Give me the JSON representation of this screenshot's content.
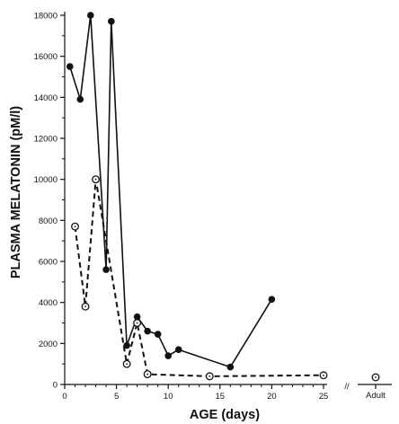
{
  "chart_data": {
    "type": "line",
    "title": "",
    "xlabel": "AGE (days)",
    "ylabel": "PLASMA MELATONIN (pM/l)",
    "xlim": [
      0,
      25
    ],
    "ylim": [
      0,
      18000
    ],
    "x_ticks": [
      0,
      5,
      10,
      15,
      20,
      25
    ],
    "y_ticks": [
      0,
      2000,
      4000,
      6000,
      8000,
      10000,
      12000,
      14000,
      16000,
      18000
    ],
    "grid": false,
    "adult_label": "Adult",
    "axis_break": "//",
    "series": [
      {
        "style": "solid line, filled circles",
        "color": "#111111",
        "x": [
          0.5,
          1.5,
          2.5,
          4,
          4.5,
          6,
          7,
          8,
          9,
          10,
          11,
          16,
          20
        ],
        "y": [
          15500,
          13900,
          18000,
          5600,
          17700,
          1900,
          3300,
          2600,
          2450,
          1400,
          1700,
          850,
          4150
        ]
      },
      {
        "style": "dashed line, open circles",
        "color": "#111111",
        "x": [
          1,
          2,
          3,
          6,
          7,
          8,
          14,
          25
        ],
        "y": [
          7700,
          3800,
          10000,
          1000,
          3000,
          500,
          400,
          450
        ],
        "adult_value": 350
      }
    ]
  }
}
